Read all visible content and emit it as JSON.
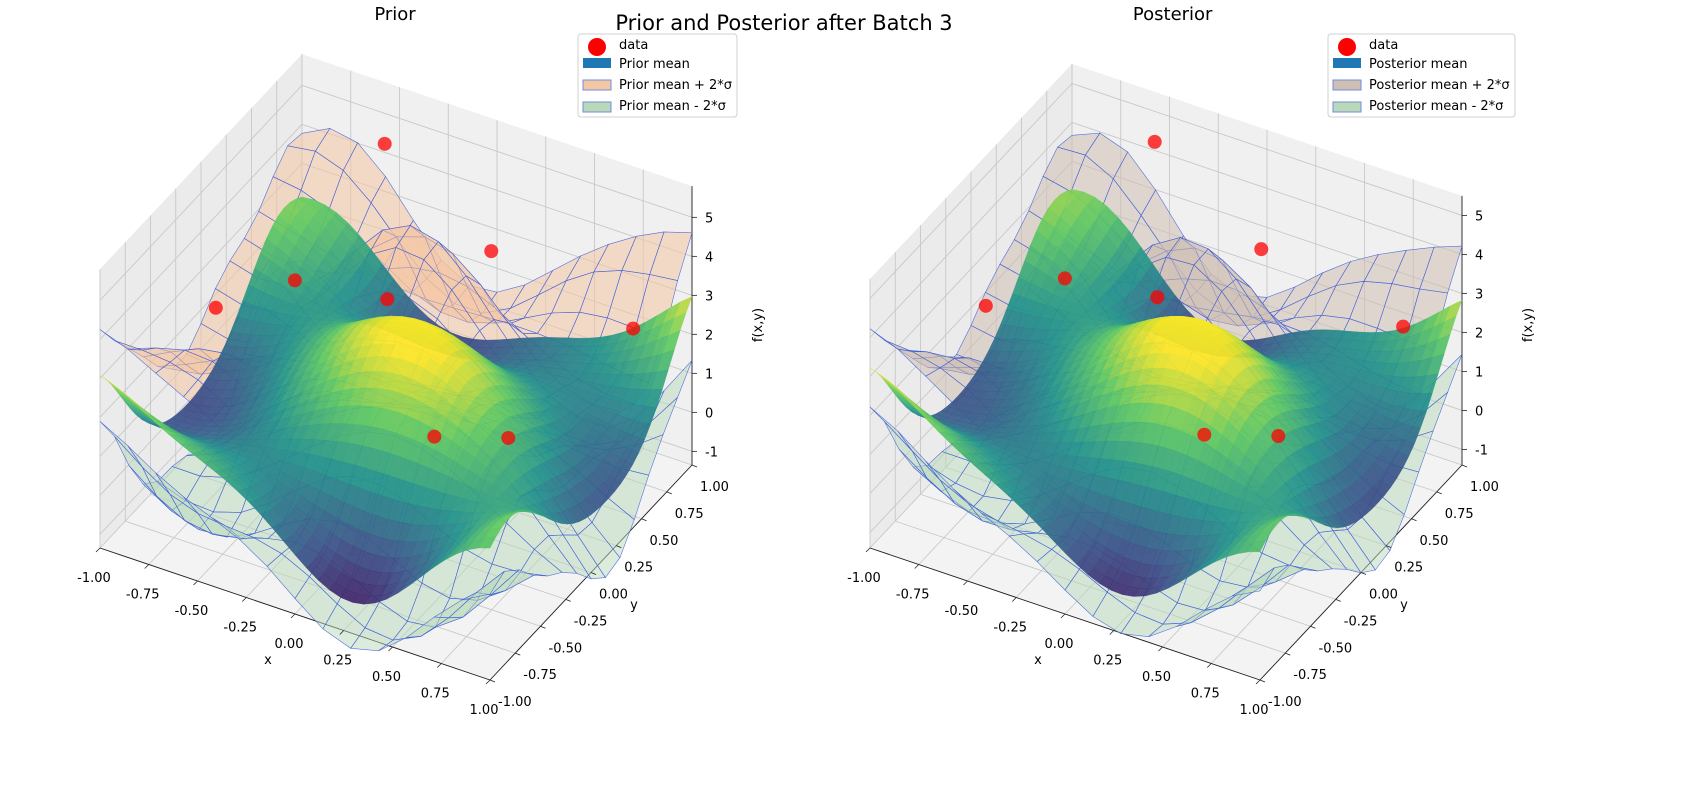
{
  "chart_data": {
    "type": "surface3d",
    "title": "Prior and Posterior after Batch 3",
    "subplots": [
      {
        "title": "Prior",
        "xlabel": "x",
        "ylabel": "y",
        "zlabel": "f(x,y)",
        "xlim": [
          -1,
          1
        ],
        "ylim": [
          -1,
          1
        ],
        "zlim": [
          -1.35,
          5.8
        ],
        "xticks": [
          "-1.00",
          "-0.75",
          "-0.50",
          "-0.25",
          "0.00",
          "0.25",
          "0.50",
          "0.75",
          "1.00"
        ],
        "yticks": [
          "-1.00",
          "-0.75",
          "-0.50",
          "-0.25",
          "0.00",
          "0.25",
          "0.50",
          "0.75",
          "1.00"
        ],
        "zticks": [
          "-1",
          "0",
          "1",
          "2",
          "3",
          "4",
          "5"
        ],
        "legend": [
          "data",
          "Prior mean",
          "Prior mean + 2*σ",
          "Prior mean - 2*σ"
        ],
        "legend_position": "top-right",
        "sigma_scale": 1.0,
        "colors": {
          "upper": "#f4c7a4",
          "lower": "#b9d9b9",
          "mean": "#1f77b4",
          "data": "#ff0000",
          "edge": "#3a5bd9"
        }
      },
      {
        "title": "Posterior",
        "xlabel": "x",
        "ylabel": "y",
        "zlabel": "f(x,y)",
        "xlim": [
          -1,
          1
        ],
        "ylim": [
          -1,
          1
        ],
        "zlim": [
          -1.4,
          5.5
        ],
        "xticks": [
          "-1.00",
          "-0.75",
          "-0.50",
          "-0.25",
          "0.00",
          "0.25",
          "0.50",
          "0.75",
          "1.00"
        ],
        "yticks": [
          "-1.00",
          "-0.75",
          "-0.50",
          "-0.25",
          "0.00",
          "0.25",
          "0.50",
          "0.75",
          "1.00"
        ],
        "zticks": [
          "-1",
          "0",
          "1",
          "2",
          "3",
          "4",
          "5"
        ],
        "legend": [
          "data",
          "Posterior mean",
          "Posterior mean + 2*σ",
          "Posterior mean - 2*σ"
        ],
        "legend_position": "top-right",
        "sigma_scale": 0.85,
        "colors": {
          "upper": "#cfbfb2",
          "lower": "#b9d9b9",
          "mean": "#1f77b4",
          "data": "#ff0000",
          "edge": "#3a5bd9"
        }
      }
    ],
    "data_points": [
      [
        -0.95,
        0.05,
        2.0
      ],
      [
        -0.7,
        0.35,
        2.3
      ],
      [
        -0.55,
        0.95,
        4.4
      ],
      [
        0.1,
        0.75,
        3.3
      ],
      [
        0.75,
        0.9,
        2.0
      ],
      [
        -0.2,
        0.3,
        2.8
      ],
      [
        0.55,
        0.05,
        1.2
      ],
      [
        0.3,
        -0.2,
        1.5
      ]
    ]
  }
}
